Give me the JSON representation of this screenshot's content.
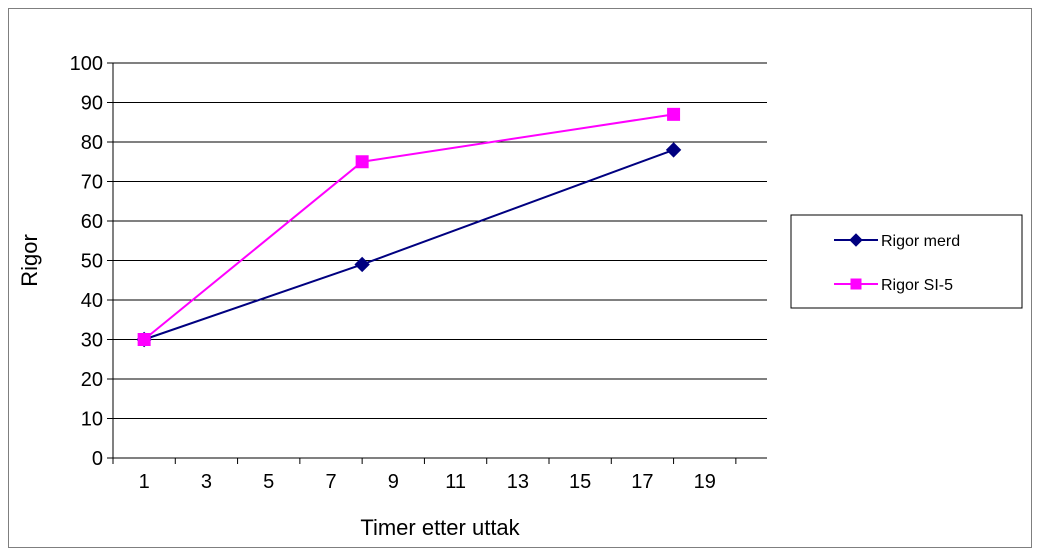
{
  "chart_data": {
    "type": "line",
    "title": "",
    "xlabel": "Timer etter uttak",
    "ylabel": "Rigor",
    "xlim": [
      0,
      21
    ],
    "ylim": [
      0,
      100
    ],
    "xticks": [
      1,
      3,
      5,
      7,
      9,
      11,
      13,
      15,
      17,
      19
    ],
    "yticks": [
      0,
      10,
      20,
      30,
      40,
      50,
      60,
      70,
      80,
      90,
      100
    ],
    "grid": "horizontal",
    "legend_position": "right",
    "series": [
      {
        "name": "Rigor merd",
        "color": "#000080",
        "marker": "diamond",
        "x": [
          1,
          8,
          18
        ],
        "y": [
          30,
          49,
          78
        ]
      },
      {
        "name": "Rigor SI-5",
        "color": "#ff00ff",
        "marker": "square",
        "x": [
          1,
          8,
          18
        ],
        "y": [
          30,
          75,
          87
        ]
      }
    ]
  }
}
